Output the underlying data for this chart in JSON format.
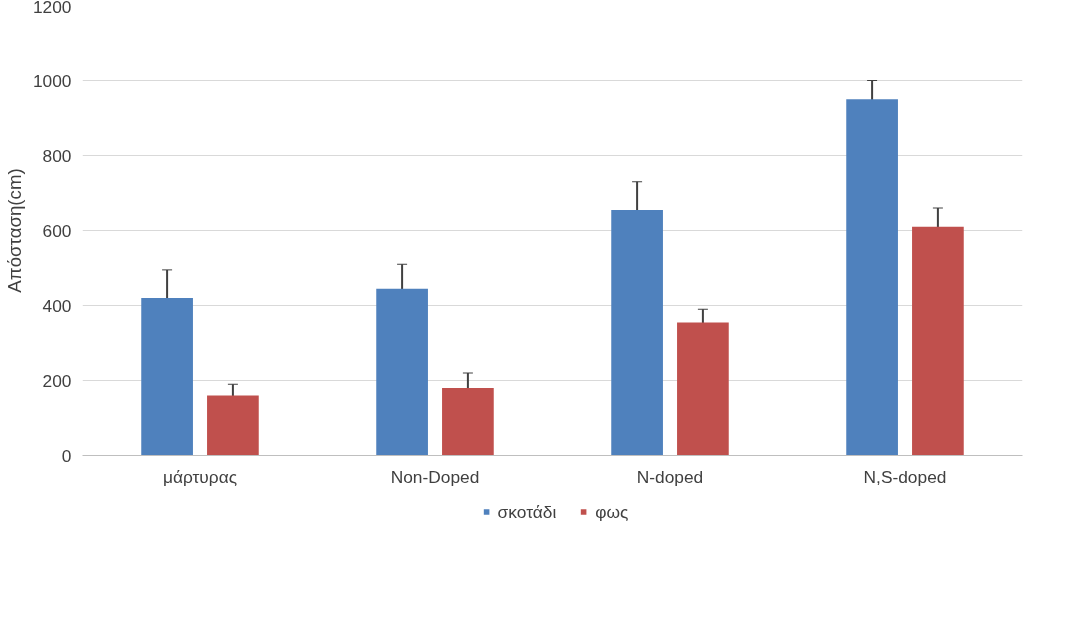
{
  "chart_data": {
    "type": "bar",
    "ylabel": "Απόσταση(cm)",
    "categories": [
      "μάρτυρας",
      "Non-Doped",
      "N-doped",
      "N,S-doped"
    ],
    "series": [
      {
        "name": "σκοτάδι",
        "color": "#4f81bd",
        "values": [
          420,
          445,
          655,
          950
        ],
        "errors": [
          75,
          65,
          75,
          50
        ]
      },
      {
        "name": "φως",
        "color": "#c0504d",
        "values": [
          160,
          180,
          355,
          610
        ],
        "errors": [
          30,
          40,
          35,
          50
        ]
      }
    ],
    "ylim": [
      0,
      1200
    ],
    "yticks": [
      0,
      200,
      400,
      600,
      800,
      1000,
      1200
    ],
    "grid": "y",
    "legend": "bottom"
  }
}
